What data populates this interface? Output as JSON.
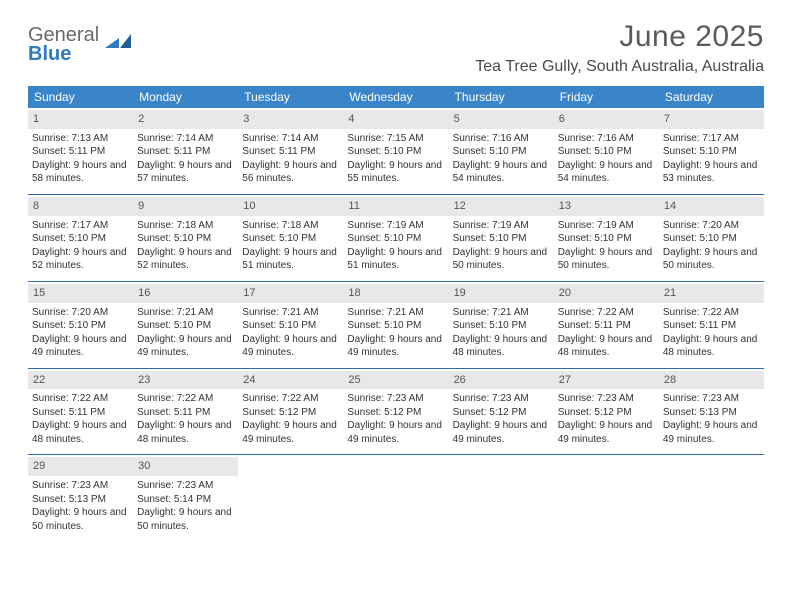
{
  "brand": {
    "word1": "General",
    "word2": "Blue"
  },
  "title": "June 2025",
  "location": "Tea Tree Gully, South Australia, Australia",
  "colors": {
    "header_bg": "#3a85c9",
    "header_text": "#ffffff",
    "daynum_bg": "#e8e8ea",
    "rule": "#2f6aa5",
    "brand_gray": "#6a6a6a",
    "brand_blue": "#2f7ac0"
  },
  "day_names": [
    "Sunday",
    "Monday",
    "Tuesday",
    "Wednesday",
    "Thursday",
    "Friday",
    "Saturday"
  ],
  "weeks": [
    [
      {
        "n": "1",
        "sr": "Sunrise: 7:13 AM",
        "ss": "Sunset: 5:11 PM",
        "dl": "Daylight: 9 hours and 58 minutes."
      },
      {
        "n": "2",
        "sr": "Sunrise: 7:14 AM",
        "ss": "Sunset: 5:11 PM",
        "dl": "Daylight: 9 hours and 57 minutes."
      },
      {
        "n": "3",
        "sr": "Sunrise: 7:14 AM",
        "ss": "Sunset: 5:11 PM",
        "dl": "Daylight: 9 hours and 56 minutes."
      },
      {
        "n": "4",
        "sr": "Sunrise: 7:15 AM",
        "ss": "Sunset: 5:10 PM",
        "dl": "Daylight: 9 hours and 55 minutes."
      },
      {
        "n": "5",
        "sr": "Sunrise: 7:16 AM",
        "ss": "Sunset: 5:10 PM",
        "dl": "Daylight: 9 hours and 54 minutes."
      },
      {
        "n": "6",
        "sr": "Sunrise: 7:16 AM",
        "ss": "Sunset: 5:10 PM",
        "dl": "Daylight: 9 hours and 54 minutes."
      },
      {
        "n": "7",
        "sr": "Sunrise: 7:17 AM",
        "ss": "Sunset: 5:10 PM",
        "dl": "Daylight: 9 hours and 53 minutes."
      }
    ],
    [
      {
        "n": "8",
        "sr": "Sunrise: 7:17 AM",
        "ss": "Sunset: 5:10 PM",
        "dl": "Daylight: 9 hours and 52 minutes."
      },
      {
        "n": "9",
        "sr": "Sunrise: 7:18 AM",
        "ss": "Sunset: 5:10 PM",
        "dl": "Daylight: 9 hours and 52 minutes."
      },
      {
        "n": "10",
        "sr": "Sunrise: 7:18 AM",
        "ss": "Sunset: 5:10 PM",
        "dl": "Daylight: 9 hours and 51 minutes."
      },
      {
        "n": "11",
        "sr": "Sunrise: 7:19 AM",
        "ss": "Sunset: 5:10 PM",
        "dl": "Daylight: 9 hours and 51 minutes."
      },
      {
        "n": "12",
        "sr": "Sunrise: 7:19 AM",
        "ss": "Sunset: 5:10 PM",
        "dl": "Daylight: 9 hours and 50 minutes."
      },
      {
        "n": "13",
        "sr": "Sunrise: 7:19 AM",
        "ss": "Sunset: 5:10 PM",
        "dl": "Daylight: 9 hours and 50 minutes."
      },
      {
        "n": "14",
        "sr": "Sunrise: 7:20 AM",
        "ss": "Sunset: 5:10 PM",
        "dl": "Daylight: 9 hours and 50 minutes."
      }
    ],
    [
      {
        "n": "15",
        "sr": "Sunrise: 7:20 AM",
        "ss": "Sunset: 5:10 PM",
        "dl": "Daylight: 9 hours and 49 minutes."
      },
      {
        "n": "16",
        "sr": "Sunrise: 7:21 AM",
        "ss": "Sunset: 5:10 PM",
        "dl": "Daylight: 9 hours and 49 minutes."
      },
      {
        "n": "17",
        "sr": "Sunrise: 7:21 AM",
        "ss": "Sunset: 5:10 PM",
        "dl": "Daylight: 9 hours and 49 minutes."
      },
      {
        "n": "18",
        "sr": "Sunrise: 7:21 AM",
        "ss": "Sunset: 5:10 PM",
        "dl": "Daylight: 9 hours and 49 minutes."
      },
      {
        "n": "19",
        "sr": "Sunrise: 7:21 AM",
        "ss": "Sunset: 5:10 PM",
        "dl": "Daylight: 9 hours and 48 minutes."
      },
      {
        "n": "20",
        "sr": "Sunrise: 7:22 AM",
        "ss": "Sunset: 5:11 PM",
        "dl": "Daylight: 9 hours and 48 minutes."
      },
      {
        "n": "21",
        "sr": "Sunrise: 7:22 AM",
        "ss": "Sunset: 5:11 PM",
        "dl": "Daylight: 9 hours and 48 minutes."
      }
    ],
    [
      {
        "n": "22",
        "sr": "Sunrise: 7:22 AM",
        "ss": "Sunset: 5:11 PM",
        "dl": "Daylight: 9 hours and 48 minutes."
      },
      {
        "n": "23",
        "sr": "Sunrise: 7:22 AM",
        "ss": "Sunset: 5:11 PM",
        "dl": "Daylight: 9 hours and 48 minutes."
      },
      {
        "n": "24",
        "sr": "Sunrise: 7:22 AM",
        "ss": "Sunset: 5:12 PM",
        "dl": "Daylight: 9 hours and 49 minutes."
      },
      {
        "n": "25",
        "sr": "Sunrise: 7:23 AM",
        "ss": "Sunset: 5:12 PM",
        "dl": "Daylight: 9 hours and 49 minutes."
      },
      {
        "n": "26",
        "sr": "Sunrise: 7:23 AM",
        "ss": "Sunset: 5:12 PM",
        "dl": "Daylight: 9 hours and 49 minutes."
      },
      {
        "n": "27",
        "sr": "Sunrise: 7:23 AM",
        "ss": "Sunset: 5:12 PM",
        "dl": "Daylight: 9 hours and 49 minutes."
      },
      {
        "n": "28",
        "sr": "Sunrise: 7:23 AM",
        "ss": "Sunset: 5:13 PM",
        "dl": "Daylight: 9 hours and 49 minutes."
      }
    ],
    [
      {
        "n": "29",
        "sr": "Sunrise: 7:23 AM",
        "ss": "Sunset: 5:13 PM",
        "dl": "Daylight: 9 hours and 50 minutes."
      },
      {
        "n": "30",
        "sr": "Sunrise: 7:23 AM",
        "ss": "Sunset: 5:14 PM",
        "dl": "Daylight: 9 hours and 50 minutes."
      },
      null,
      null,
      null,
      null,
      null
    ]
  ]
}
